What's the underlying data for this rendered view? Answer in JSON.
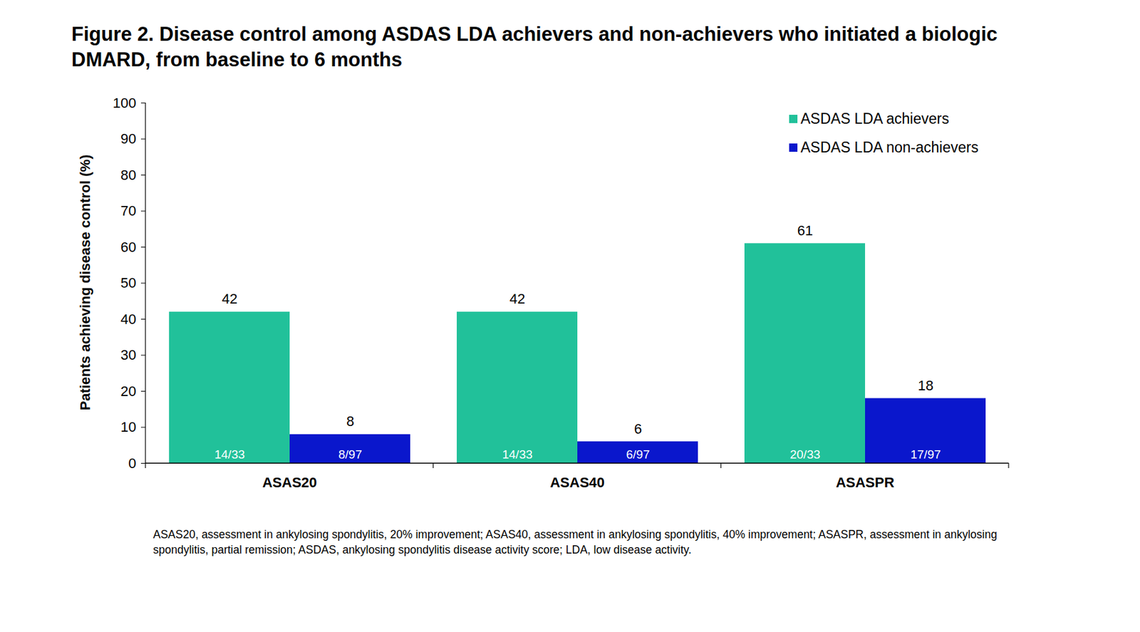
{
  "chart_data": {
    "type": "bar",
    "title": "Figure 2. Disease control among ASDAS LDA achievers and non-achievers who initiated a biologic DMARD, from baseline to 6 months",
    "y_label": "Patients achieving disease control (%)",
    "categories": [
      "ASAS20",
      "ASAS40",
      "ASASPR"
    ],
    "series": [
      {
        "name": "ASDAS LDA achievers",
        "color": "#21c19a",
        "values": [
          42,
          42,
          61
        ],
        "counts": [
          "14/33",
          "14/33",
          "20/33"
        ]
      },
      {
        "name": "ASDAS LDA non-achievers",
        "color": "#0a17cc",
        "values": [
          8,
          6,
          18
        ],
        "counts": [
          "8/97",
          "6/97",
          "17/97"
        ]
      }
    ],
    "ylim": [
      0,
      100
    ],
    "yticks": [
      0,
      10,
      20,
      30,
      40,
      50,
      60,
      70,
      80,
      90,
      100
    ],
    "grid": false,
    "legend": "top-right",
    "data_labels": true,
    "caption": "ASAS20, assessment in ankylosing spondylitis, 20% improvement; ASAS40, assessment in ankylosing spondylitis, 40% improvement; ASASPR, assessment in ankylosing spondylitis, partial remission; ASDAS, ankylosing spondylitis disease activity score; LDA, low disease activity."
  }
}
